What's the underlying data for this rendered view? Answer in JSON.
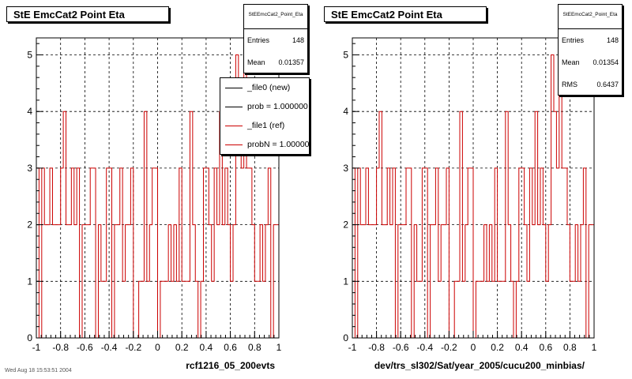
{
  "footer_text": "Wed Aug 18 15:53:51 2004",
  "chart_data": [
    {
      "type": "step",
      "title": "StE EmcCat2 Point Eta",
      "xlabel": "rcf1216_05_200evts",
      "ylabel": "",
      "xlim": [
        -1,
        1
      ],
      "ylim": [
        0,
        5.3
      ],
      "x_ticks": [
        "-1",
        "-0.8",
        "-0.6",
        "-0.4",
        "-0.2",
        "0",
        "0.2",
        "0.4",
        "0.6",
        "0.8",
        "1"
      ],
      "y_ticks": [
        "0",
        "1",
        "2",
        "3",
        "4",
        "5"
      ],
      "grid": true,
      "stats": {
        "header": "StEEmcCat2_Point_Eta",
        "entries_label": "Entries",
        "entries": "148",
        "mean_label": "Mean",
        "mean": "0.01357",
        "rms_label": "",
        "rms": ""
      },
      "legend": [
        {
          "label": "_file0 (new)",
          "color": "#000000"
        },
        {
          "label": "prob = 1.000000",
          "color": "#000000"
        },
        {
          "label": "_file1 (ref)",
          "color": "#cc0000"
        },
        {
          "label": "probN = 1.000000",
          "color": "#cc0000"
        }
      ],
      "series": [
        {
          "color": "#cc0000",
          "values": [
            3,
            0,
            3,
            2,
            2,
            3,
            2,
            2,
            2,
            3,
            4,
            2,
            2,
            3,
            2,
            3,
            0,
            2,
            2,
            2,
            3,
            3,
            0,
            2,
            1,
            1,
            3,
            3,
            0,
            2,
            2,
            3,
            1,
            2,
            2,
            3,
            0,
            0,
            1,
            1,
            4,
            1,
            2,
            3,
            3,
            0,
            1,
            1,
            1,
            2,
            1,
            2,
            1,
            3,
            1,
            1,
            1,
            4,
            2,
            1,
            0,
            1,
            3,
            3,
            2,
            1,
            3,
            2,
            4,
            2,
            3,
            2,
            1,
            2,
            5,
            4,
            3,
            5,
            3,
            3,
            2,
            1,
            1,
            2,
            1,
            2,
            3,
            0,
            2,
            2
          ]
        }
      ]
    },
    {
      "type": "step",
      "title": "StE EmcCat2 Point Eta",
      "xlabel": "dev/trs_sl302/Sat/year_2005/cucu200_minbias/",
      "ylabel": "",
      "xlim": [
        -1,
        1
      ],
      "ylim": [
        0,
        5.3
      ],
      "x_ticks": [
        "-1",
        "-0.8",
        "-0.6",
        "-0.4",
        "-0.2",
        "0",
        "0.2",
        "0.4",
        "0.6",
        "0.8",
        "1"
      ],
      "y_ticks": [
        "0",
        "1",
        "2",
        "3",
        "4",
        "5"
      ],
      "grid": true,
      "stats": {
        "header": "StEEmcCat2_Point_Eta",
        "entries_label": "Entries",
        "entries": "148",
        "mean_label": "Mean",
        "mean": "0.01354",
        "rms_label": "RMS",
        "rms": "0.6437"
      },
      "legend": [],
      "series": [
        {
          "color": "#cc0000",
          "values": [
            3,
            0,
            3,
            2,
            2,
            3,
            2,
            2,
            2,
            3,
            4,
            2,
            2,
            3,
            2,
            3,
            0,
            2,
            2,
            2,
            3,
            3,
            0,
            2,
            1,
            1,
            3,
            3,
            0,
            2,
            2,
            3,
            1,
            2,
            2,
            3,
            0,
            0,
            1,
            1,
            4,
            1,
            2,
            3,
            3,
            0,
            1,
            1,
            1,
            2,
            1,
            2,
            1,
            3,
            1,
            1,
            1,
            4,
            2,
            1,
            0,
            1,
            3,
            3,
            2,
            1,
            3,
            2,
            4,
            2,
            3,
            2,
            1,
            2,
            5,
            4,
            3,
            5,
            3,
            3,
            2,
            1,
            1,
            2,
            1,
            2,
            3,
            0,
            2,
            2
          ]
        }
      ]
    }
  ]
}
